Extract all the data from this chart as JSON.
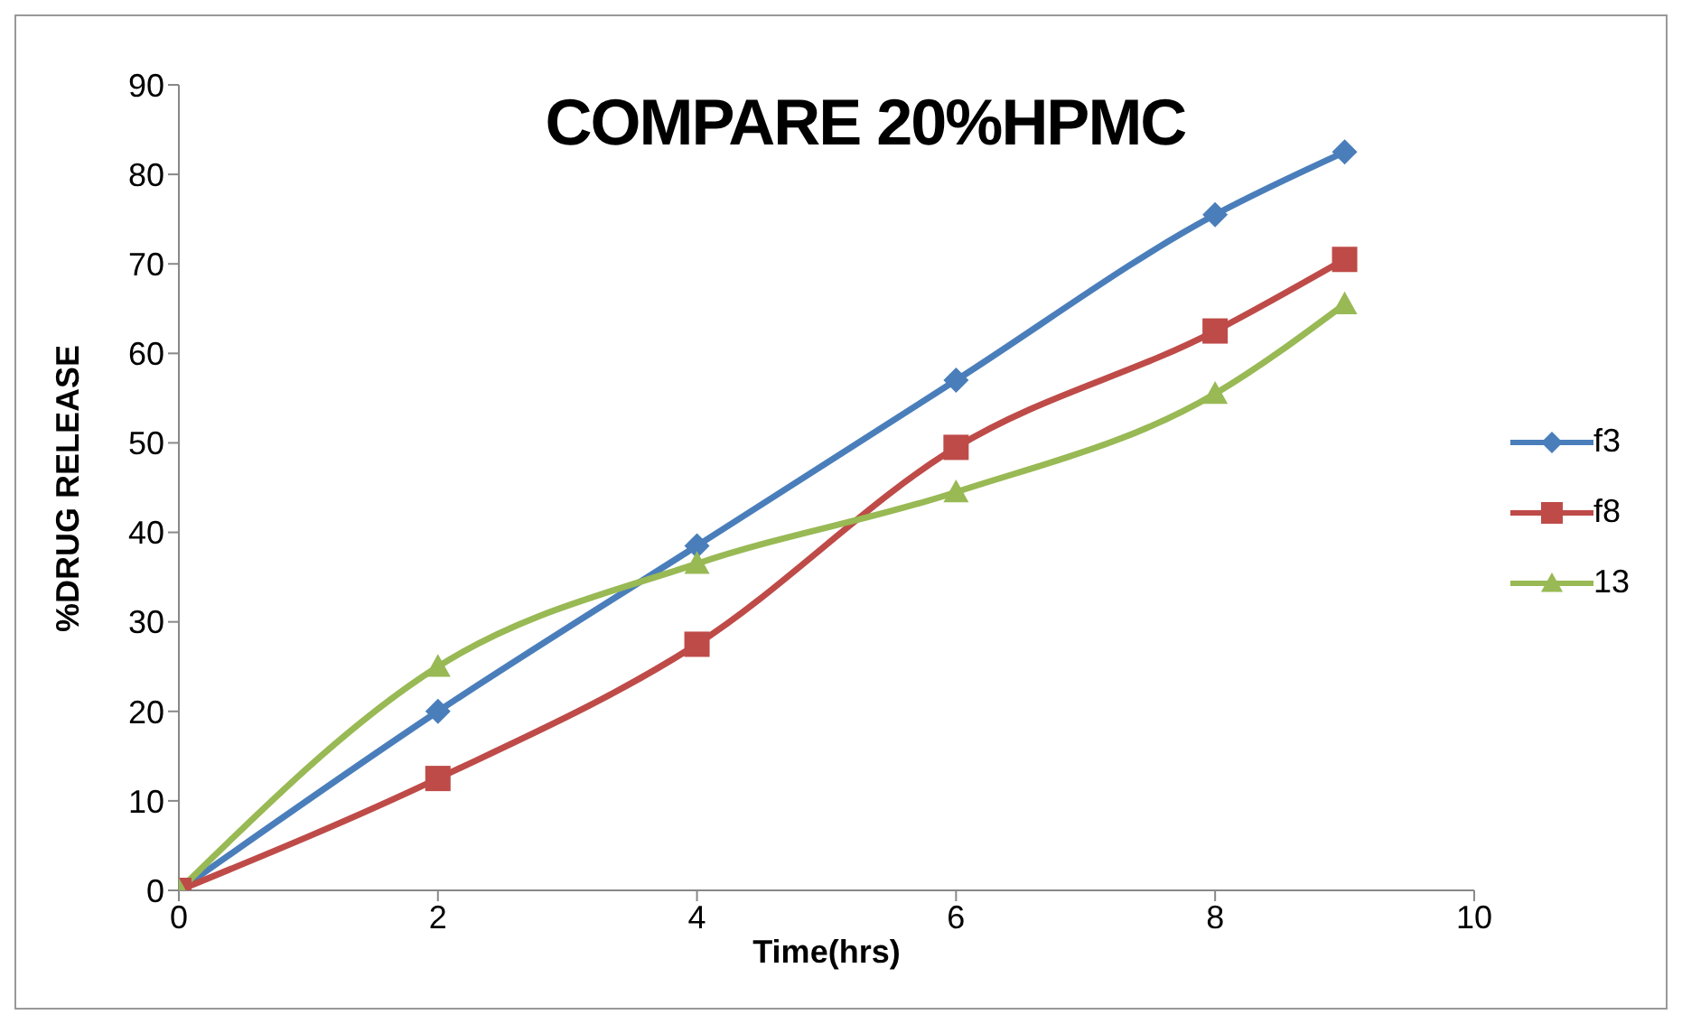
{
  "chart_data": {
    "type": "line",
    "title": "COMPARE 20%HPMC",
    "xlabel": "Time(hrs)",
    "ylabel": "%DRUG RELEASE",
    "x": [
      0,
      2,
      4,
      6,
      8,
      9
    ],
    "series": [
      {
        "name": "f3",
        "color": "#4a7ebb",
        "marker": "diamond",
        "values": [
          0,
          20,
          38.5,
          57,
          75.5,
          82.5
        ]
      },
      {
        "name": "f8",
        "color": "#be4b48",
        "marker": "square",
        "values": [
          0,
          12.5,
          27.5,
          49.5,
          62.5,
          70.5
        ]
      },
      {
        "name": "13",
        "color": "#98b954",
        "marker": "triangle",
        "values": [
          0,
          25,
          36.5,
          44.5,
          55.5,
          65.5
        ]
      }
    ],
    "xlim": [
      0,
      10
    ],
    "xticks": [
      0,
      2,
      4,
      6,
      8,
      10
    ],
    "ylim": [
      0,
      90
    ],
    "yticks": [
      0,
      10,
      20,
      30,
      40,
      50,
      60,
      70,
      80,
      90
    ],
    "grid": false,
    "legend": "right",
    "line_style": "solid"
  }
}
